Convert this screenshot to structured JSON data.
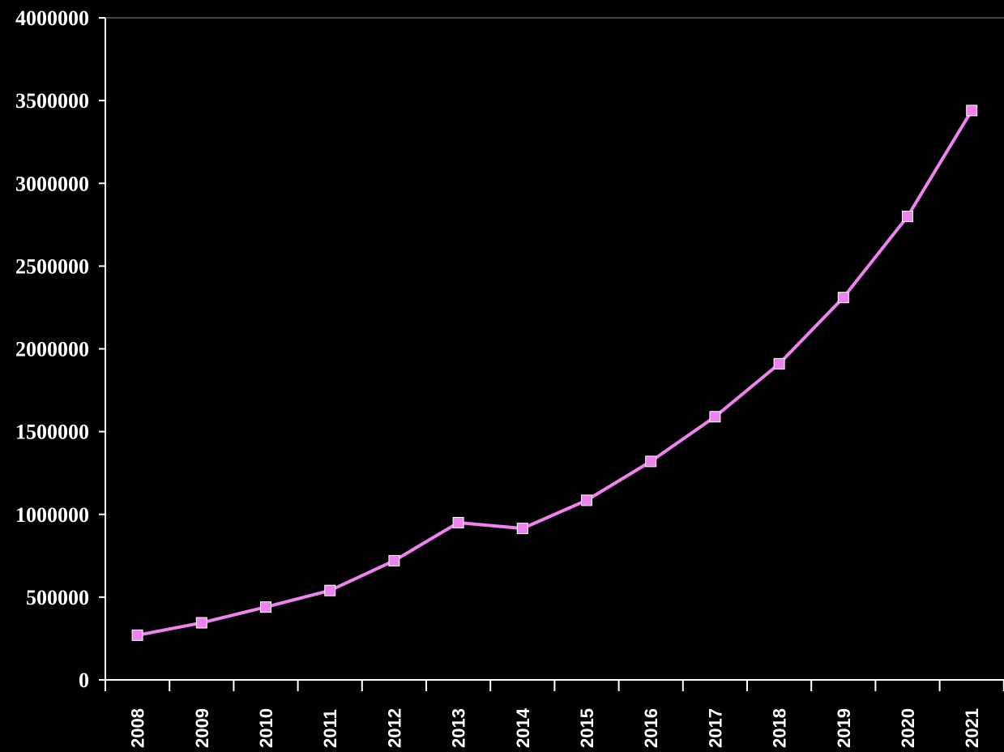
{
  "chart_data": {
    "type": "line",
    "categories": [
      "2008",
      "2009",
      "2010",
      "2011",
      "2012",
      "2013",
      "2014",
      "2015",
      "2016",
      "2017",
      "2018",
      "2019",
      "2020",
      "2021"
    ],
    "series": [
      {
        "values": [
          270000,
          345000,
          440000,
          540000,
          720000,
          950000,
          915000,
          1085000,
          1320000,
          1590000,
          1910000,
          2310000,
          2800000,
          3440000
        ]
      }
    ],
    "ylim": [
      0,
      4000000
    ],
    "yticks": [
      "0",
      "500000",
      "1000000",
      "1500000",
      "2000000",
      "2500000",
      "3000000",
      "3500000",
      "4000000"
    ],
    "grid": false,
    "legend": "none",
    "title": "",
    "xlabel": "",
    "ylabel": "",
    "colors": {
      "background": "#000000",
      "axis": "#ffffff",
      "text": "#ffffff",
      "line": "#ee82ee",
      "marker": "#ee82ee"
    }
  }
}
